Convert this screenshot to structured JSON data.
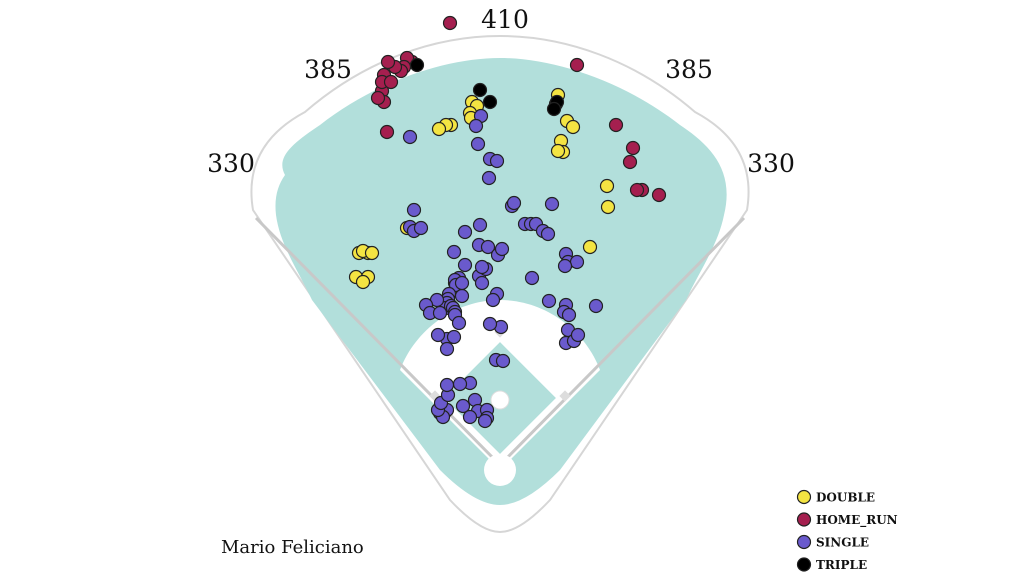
{
  "chart_data": {
    "type": "scatter",
    "title": "",
    "player": "Mario Feliciano",
    "field": {
      "distances": {
        "center": "410",
        "left_center": "385",
        "right_center": "385",
        "left_line": "330",
        "right_line": "330"
      },
      "outfield_color": "#b2dfdb"
    },
    "legend": {
      "placement": "bottom-right",
      "entries": [
        {
          "name": "DOUBLE",
          "color": "#f4e442"
        },
        {
          "name": "HOME_RUN",
          "color": "#a51f4f"
        },
        {
          "name": "SINGLE",
          "color": "#6a5acd"
        },
        {
          "name": "TRIPLE",
          "color": "#000000"
        }
      ]
    },
    "units": "feet, home plate at origin, x positive toward right field, y toward center field",
    "series": [
      {
        "name": "DOUBLE",
        "color": "#f4e442",
        "points": [
          [
            -28,
            363
          ],
          [
            -23,
            359
          ],
          [
            -30,
            352
          ],
          [
            -29,
            347
          ],
          [
            -49,
            340
          ],
          [
            -54,
            340
          ],
          [
            -61,
            336
          ],
          [
            58,
            370
          ],
          [
            56,
            361
          ],
          [
            67,
            344
          ],
          [
            73,
            338
          ],
          [
            61,
            324
          ],
          [
            63,
            313
          ],
          [
            58,
            314
          ],
          [
            108,
            258
          ],
          [
            107,
            279
          ],
          [
            90,
            218
          ],
          [
            -45,
            182
          ],
          [
            -93,
            237
          ],
          [
            -141,
            212
          ],
          [
            -132,
            212
          ],
          [
            -137,
            214
          ],
          [
            -128,
            212
          ],
          [
            -144,
            188
          ],
          [
            -132,
            188
          ],
          [
            -137,
            183
          ]
        ]
      },
      {
        "name": "HOME_RUN",
        "color": "#a51f4f",
        "points": [
          [
            -50,
            442
          ],
          [
            -88,
            403
          ],
          [
            -93,
            407
          ],
          [
            -96,
            398
          ],
          [
            -99,
            394
          ],
          [
            -105,
            398
          ],
          [
            -112,
            403
          ],
          [
            -116,
            390
          ],
          [
            -118,
            374
          ],
          [
            -118,
            383
          ],
          [
            -109,
            383
          ],
          [
            -116,
            363
          ],
          [
            -122,
            367
          ],
          [
            -113,
            333
          ],
          [
            77,
            400
          ],
          [
            116,
            340
          ],
          [
            133,
            317
          ],
          [
            130,
            303
          ],
          [
            142,
            275
          ],
          [
            137,
            275
          ],
          [
            159,
            270
          ]
        ]
      },
      {
        "name": "SINGLE",
        "color": "#6a5acd",
        "points": [
          [
            -19,
            349
          ],
          [
            -24,
            339
          ],
          [
            -22,
            321
          ],
          [
            -10,
            306
          ],
          [
            -3,
            304
          ],
          [
            -11,
            287
          ],
          [
            -90,
            328
          ],
          [
            -86,
            255
          ],
          [
            -90,
            238
          ],
          [
            -86,
            234
          ],
          [
            -79,
            237
          ],
          [
            -35,
            233
          ],
          [
            -20,
            240
          ],
          [
            -21,
            220
          ],
          [
            -12,
            218
          ],
          [
            -2,
            210
          ],
          [
            2,
            216
          ],
          [
            12,
            259
          ],
          [
            14,
            262
          ],
          [
            25,
            241
          ],
          [
            31,
            241
          ],
          [
            36,
            241
          ],
          [
            43,
            234
          ],
          [
            48,
            231
          ],
          [
            52,
            261
          ],
          [
            66,
            211
          ],
          [
            68,
            203
          ],
          [
            77,
            203
          ],
          [
            65,
            199
          ],
          [
            49,
            164
          ],
          [
            32,
            187
          ],
          [
            66,
            160
          ],
          [
            64,
            153
          ],
          [
            69,
            150
          ],
          [
            68,
            135
          ],
          [
            66,
            122
          ],
          [
            74,
            124
          ],
          [
            78,
            130
          ],
          [
            96,
            159
          ],
          [
            -46,
            213
          ],
          [
            -35,
            200
          ],
          [
            -41,
            187
          ],
          [
            -45,
            185
          ],
          [
            -44,
            180
          ],
          [
            -51,
            171
          ],
          [
            -52,
            166
          ],
          [
            -53,
            162
          ],
          [
            -54,
            157
          ],
          [
            -49,
            159
          ],
          [
            -47,
            157
          ],
          [
            -45,
            153
          ],
          [
            -45,
            150
          ],
          [
            -41,
            142
          ],
          [
            -38,
            169
          ],
          [
            -38,
            182
          ],
          [
            -21,
            189
          ],
          [
            -14,
            196
          ],
          [
            -18,
            182
          ],
          [
            -3,
            171
          ],
          [
            -7,
            165
          ],
          [
            -18,
            198
          ],
          [
            1,
            138
          ],
          [
            -63,
            165
          ],
          [
            -74,
            160
          ],
          [
            -70,
            152
          ],
          [
            -60,
            152
          ],
          [
            -53,
            126
          ],
          [
            -53,
            116
          ],
          [
            -62,
            130
          ],
          [
            -46,
            128
          ],
          [
            -10,
            141
          ],
          [
            -4,
            105
          ],
          [
            3,
            104
          ],
          [
            -30,
            82
          ],
          [
            -40,
            81
          ],
          [
            -37,
            59
          ],
          [
            -25,
            65
          ],
          [
            -22,
            54
          ],
          [
            -30,
            48
          ],
          [
            -13,
            55
          ],
          [
            -13,
            47
          ],
          [
            -15,
            44
          ],
          [
            -60,
            52
          ],
          [
            -55,
            53
          ],
          [
            -53,
            55
          ],
          [
            -57,
            48
          ],
          [
            -62,
            55
          ],
          [
            -59,
            62
          ],
          [
            -52,
            70
          ],
          [
            -53,
            80
          ]
        ]
      },
      {
        "name": "TRIPLE",
        "color": "#000000",
        "points": [
          [
            -83,
            400
          ],
          [
            -20,
            375
          ],
          [
            -10,
            363
          ],
          [
            57,
            363
          ],
          [
            54,
            356
          ]
        ]
      }
    ]
  }
}
